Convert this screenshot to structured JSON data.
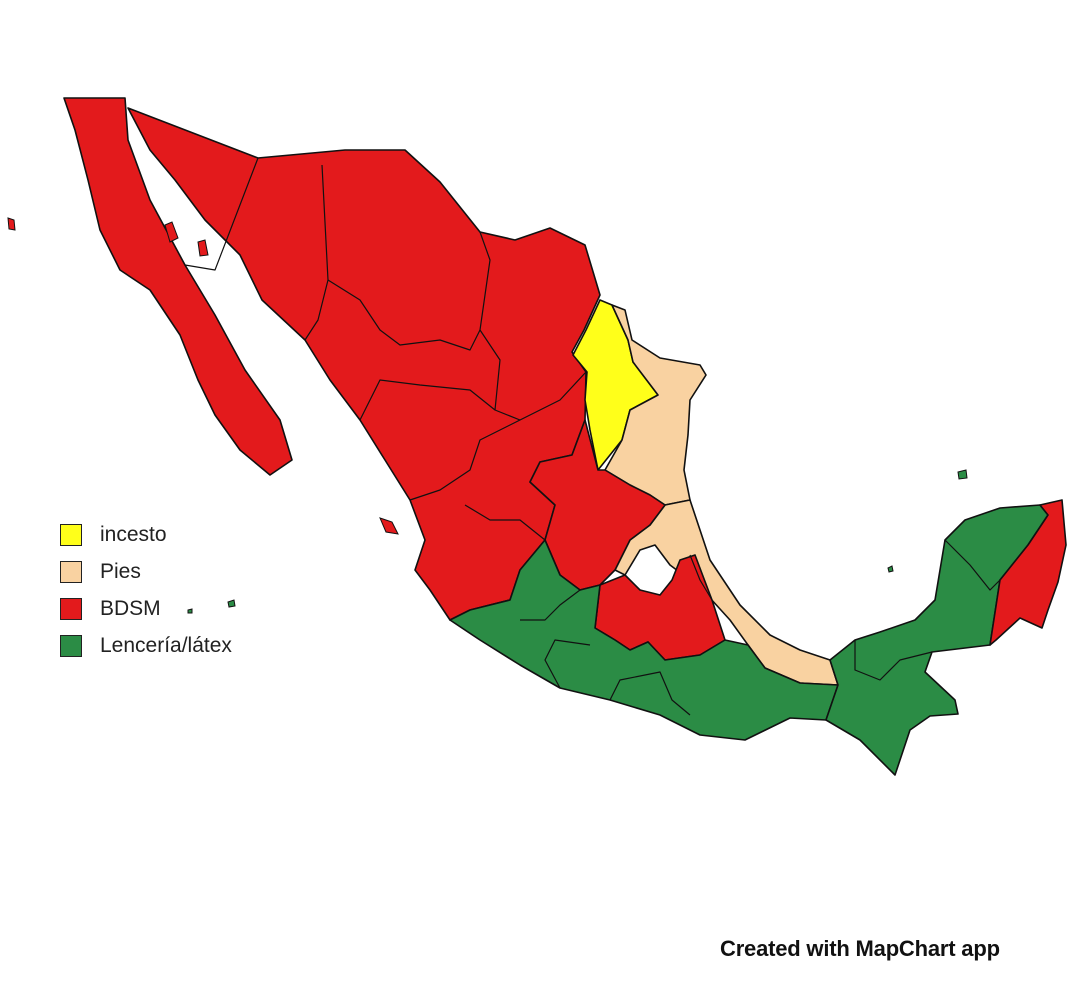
{
  "legend": [
    {
      "key": "incesto",
      "label": "incesto",
      "color": "#ffff1a"
    },
    {
      "key": "pies",
      "label": "Pies",
      "color": "#f9d2a1"
    },
    {
      "key": "bdsm",
      "label": "BDSM",
      "color": "#e31a1c"
    },
    {
      "key": "lenceria",
      "label": "Lencería/látex",
      "color": "#2b8c45"
    }
  ],
  "regions": {
    "northwest": "bdsm",
    "nuevo_leon": "incesto",
    "tamaulipas": "pies",
    "gulf_coast": "pies",
    "central_north": "lenceria",
    "central_pockets": "bdsm",
    "pacific_south": "lenceria",
    "southeast": "lenceria",
    "quintana_roo": "bdsm"
  },
  "credit": "Created with MapChart app"
}
